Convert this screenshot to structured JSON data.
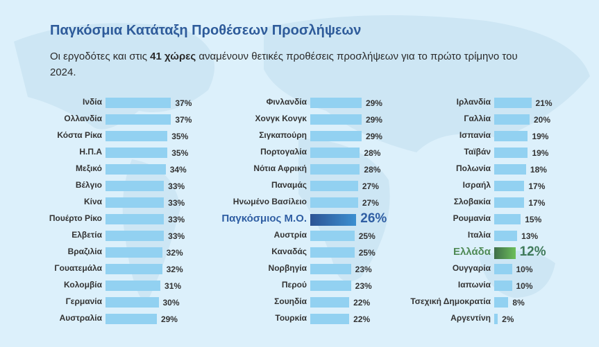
{
  "title": "Παγκόσμια Κατάταξη Προθέσεων Προσλήψεων",
  "subtitle_pre": "Οι εργοδότες και στις ",
  "subtitle_bold": "41 χώρες",
  "subtitle_post": " αναμένουν θετικές προθέσεις προσλήψεων για το πρώτο τρίμηνο του 2024.",
  "colors": {
    "bar": "#92d1f1",
    "global": "#2f5ea3",
    "greece": "#5ea852",
    "title": "#2e5b9a"
  },
  "chart_data": {
    "type": "bar",
    "orientation": "horizontal",
    "unit": "%",
    "columns": [
      [
        {
          "label": "Ινδία",
          "value": 37
        },
        {
          "label": "Ολλανδία",
          "value": 37
        },
        {
          "label": "Κόστα Ρίκα",
          "value": 35
        },
        {
          "label": "Η.Π.Α",
          "value": 35
        },
        {
          "label": "Μεξικό",
          "value": 34
        },
        {
          "label": "Βέλγιο",
          "value": 33
        },
        {
          "label": "Κίνα",
          "value": 33
        },
        {
          "label": "Πουέρτο Ρίκο",
          "value": 33
        },
        {
          "label": "Ελβετία",
          "value": 33
        },
        {
          "label": "Βραζιλία",
          "value": 32
        },
        {
          "label": "Γουατεμάλα",
          "value": 32
        },
        {
          "label": "Κολομβία",
          "value": 31
        },
        {
          "label": "Γερμανία",
          "value": 30
        },
        {
          "label": "Αυστραλία",
          "value": 29
        }
      ],
      [
        {
          "label": "Φινλανδία",
          "value": 29
        },
        {
          "label": "Χονγκ Κονγκ",
          "value": 29
        },
        {
          "label": "Σιγκαπούρη",
          "value": 29
        },
        {
          "label": "Πορτογαλία",
          "value": 28
        },
        {
          "label": "Νότια Αφρική",
          "value": 28
        },
        {
          "label": "Παναμάς",
          "value": 27
        },
        {
          "label": "Ηνωμένο Βασίλειο",
          "value": 27
        },
        {
          "label": "Παγκόσμιος Μ.Ο.",
          "value": 26,
          "highlight": "global"
        },
        {
          "label": "Αυστρία",
          "value": 25
        },
        {
          "label": "Καναδάς",
          "value": 25
        },
        {
          "label": "Νορβηγία",
          "value": 23
        },
        {
          "label": "Περού",
          "value": 23
        },
        {
          "label": "Σουηδία",
          "value": 22
        },
        {
          "label": "Τουρκία",
          "value": 22
        }
      ],
      [
        {
          "label": "Ιρλανδία",
          "value": 21
        },
        {
          "label": "Γαλλία",
          "value": 20
        },
        {
          "label": "Ισπανία",
          "value": 19
        },
        {
          "label": "Ταϊβάν",
          "value": 19
        },
        {
          "label": "Πολωνία",
          "value": 18
        },
        {
          "label": "Ισραήλ",
          "value": 17
        },
        {
          "label": "Σλοβακία",
          "value": 17
        },
        {
          "label": "Ρουμανία",
          "value": 15
        },
        {
          "label": "Ιταλία",
          "value": 13
        },
        {
          "label": "Ελλάδα",
          "value": 12,
          "highlight": "greece"
        },
        {
          "label": "Ουγγαρία",
          "value": 10
        },
        {
          "label": "Ιαπωνία",
          "value": 10
        },
        {
          "label": "Τσεχική Δημοκρατία",
          "value": 8
        },
        {
          "label": "Αργεντίνη",
          "value": 2
        }
      ]
    ]
  }
}
